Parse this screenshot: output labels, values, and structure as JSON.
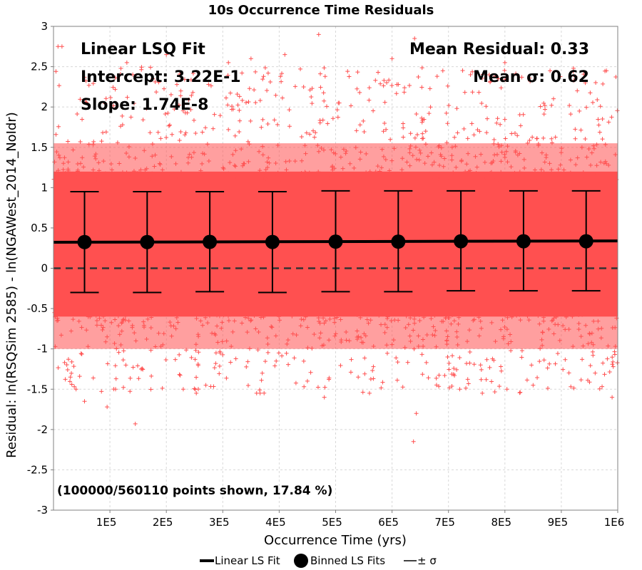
{
  "chart_data": {
    "type": "scatter",
    "title": "10s Occurrence Time Residuals",
    "xlabel": "Occurrence Time (yrs)",
    "ylabel": "Residual: ln(RSQSim 2585) - ln(NGAWest_2014_NoIdr)",
    "xlim": [
      0,
      1000000
    ],
    "ylim": [
      -3,
      3
    ],
    "x_tick_values": [
      100000,
      200000,
      300000,
      400000,
      500000,
      600000,
      700000,
      800000,
      900000,
      1000000
    ],
    "x_tick_labels": [
      "1E5",
      "2E5",
      "3E5",
      "4E5",
      "5E5",
      "6E5",
      "7E5",
      "8E5",
      "9E5",
      "1E6"
    ],
    "y_ticks": [
      -3,
      -2.5,
      -2,
      -1.5,
      -1,
      -0.5,
      0,
      0.5,
      1,
      1.5,
      2,
      2.5,
      3
    ],
    "grid": true,
    "scatter_color": "#ff5050",
    "band": {
      "low": -0.6,
      "high": 1.2
    },
    "linear_fit": {
      "intercept": 0.322,
      "slope": 1.74e-08
    },
    "zero_line": 0,
    "binned_fits": [
      {
        "x": 55000,
        "y": 0.325,
        "low": -0.3,
        "high": 0.95
      },
      {
        "x": 166000,
        "y": 0.325,
        "low": -0.3,
        "high": 0.95
      },
      {
        "x": 277000,
        "y": 0.327,
        "low": -0.29,
        "high": 0.95
      },
      {
        "x": 388000,
        "y": 0.326,
        "low": -0.3,
        "high": 0.95
      },
      {
        "x": 500000,
        "y": 0.33,
        "low": -0.29,
        "high": 0.96
      },
      {
        "x": 611000,
        "y": 0.33,
        "low": -0.29,
        "high": 0.96
      },
      {
        "x": 722000,
        "y": 0.335,
        "low": -0.28,
        "high": 0.96
      },
      {
        "x": 833000,
        "y": 0.335,
        "low": -0.28,
        "high": 0.96
      },
      {
        "x": 944000,
        "y": 0.335,
        "low": -0.28,
        "high": 0.96
      }
    ],
    "outliers": [
      [
        8000,
        2.75
      ],
      [
        15000,
        2.75
      ],
      [
        30000,
        -1.35
      ],
      [
        40000,
        -1.5
      ],
      [
        55000,
        -1.65
      ],
      [
        95000,
        -1.72
      ],
      [
        110000,
        -1.5
      ],
      [
        145000,
        -1.93
      ],
      [
        130000,
        2.55
      ],
      [
        200000,
        2.65
      ],
      [
        230000,
        -1.5
      ],
      [
        270000,
        -1.45
      ],
      [
        310000,
        2.55
      ],
      [
        350000,
        2.6
      ],
      [
        360000,
        -1.55
      ],
      [
        410000,
        2.65
      ],
      [
        450000,
        -1.4
      ],
      [
        470000,
        2.9
      ],
      [
        480000,
        -1.6
      ],
      [
        560000,
        -1.55
      ],
      [
        600000,
        2.6
      ],
      [
        640000,
        2.85
      ],
      [
        643000,
        -1.8
      ],
      [
        638000,
        -2.15
      ],
      [
        690000,
        2.45
      ],
      [
        720000,
        -1.5
      ],
      [
        760000,
        -1.55
      ],
      [
        800000,
        2.55
      ],
      [
        850000,
        -1.45
      ],
      [
        880000,
        2.45
      ],
      [
        980000,
        2.45
      ],
      [
        990000,
        -1.6
      ],
      [
        960000,
        -1.3
      ],
      [
        540000,
        -1.35
      ]
    ],
    "annotations": {
      "fit_label": "Linear LSQ Fit",
      "intercept": "Intercept: 3.22E-1",
      "slope": "Slope: 1.74E-8",
      "mean_residual": "Mean Residual: 0.33",
      "mean_sigma": "Mean σ: 0.62",
      "points_shown": "(100000/560110 points shown, 17.84 %)"
    },
    "legend": {
      "position": "bottom",
      "entries": [
        "Linear LS Fit",
        "Binned LS Fits",
        "± σ"
      ]
    }
  }
}
